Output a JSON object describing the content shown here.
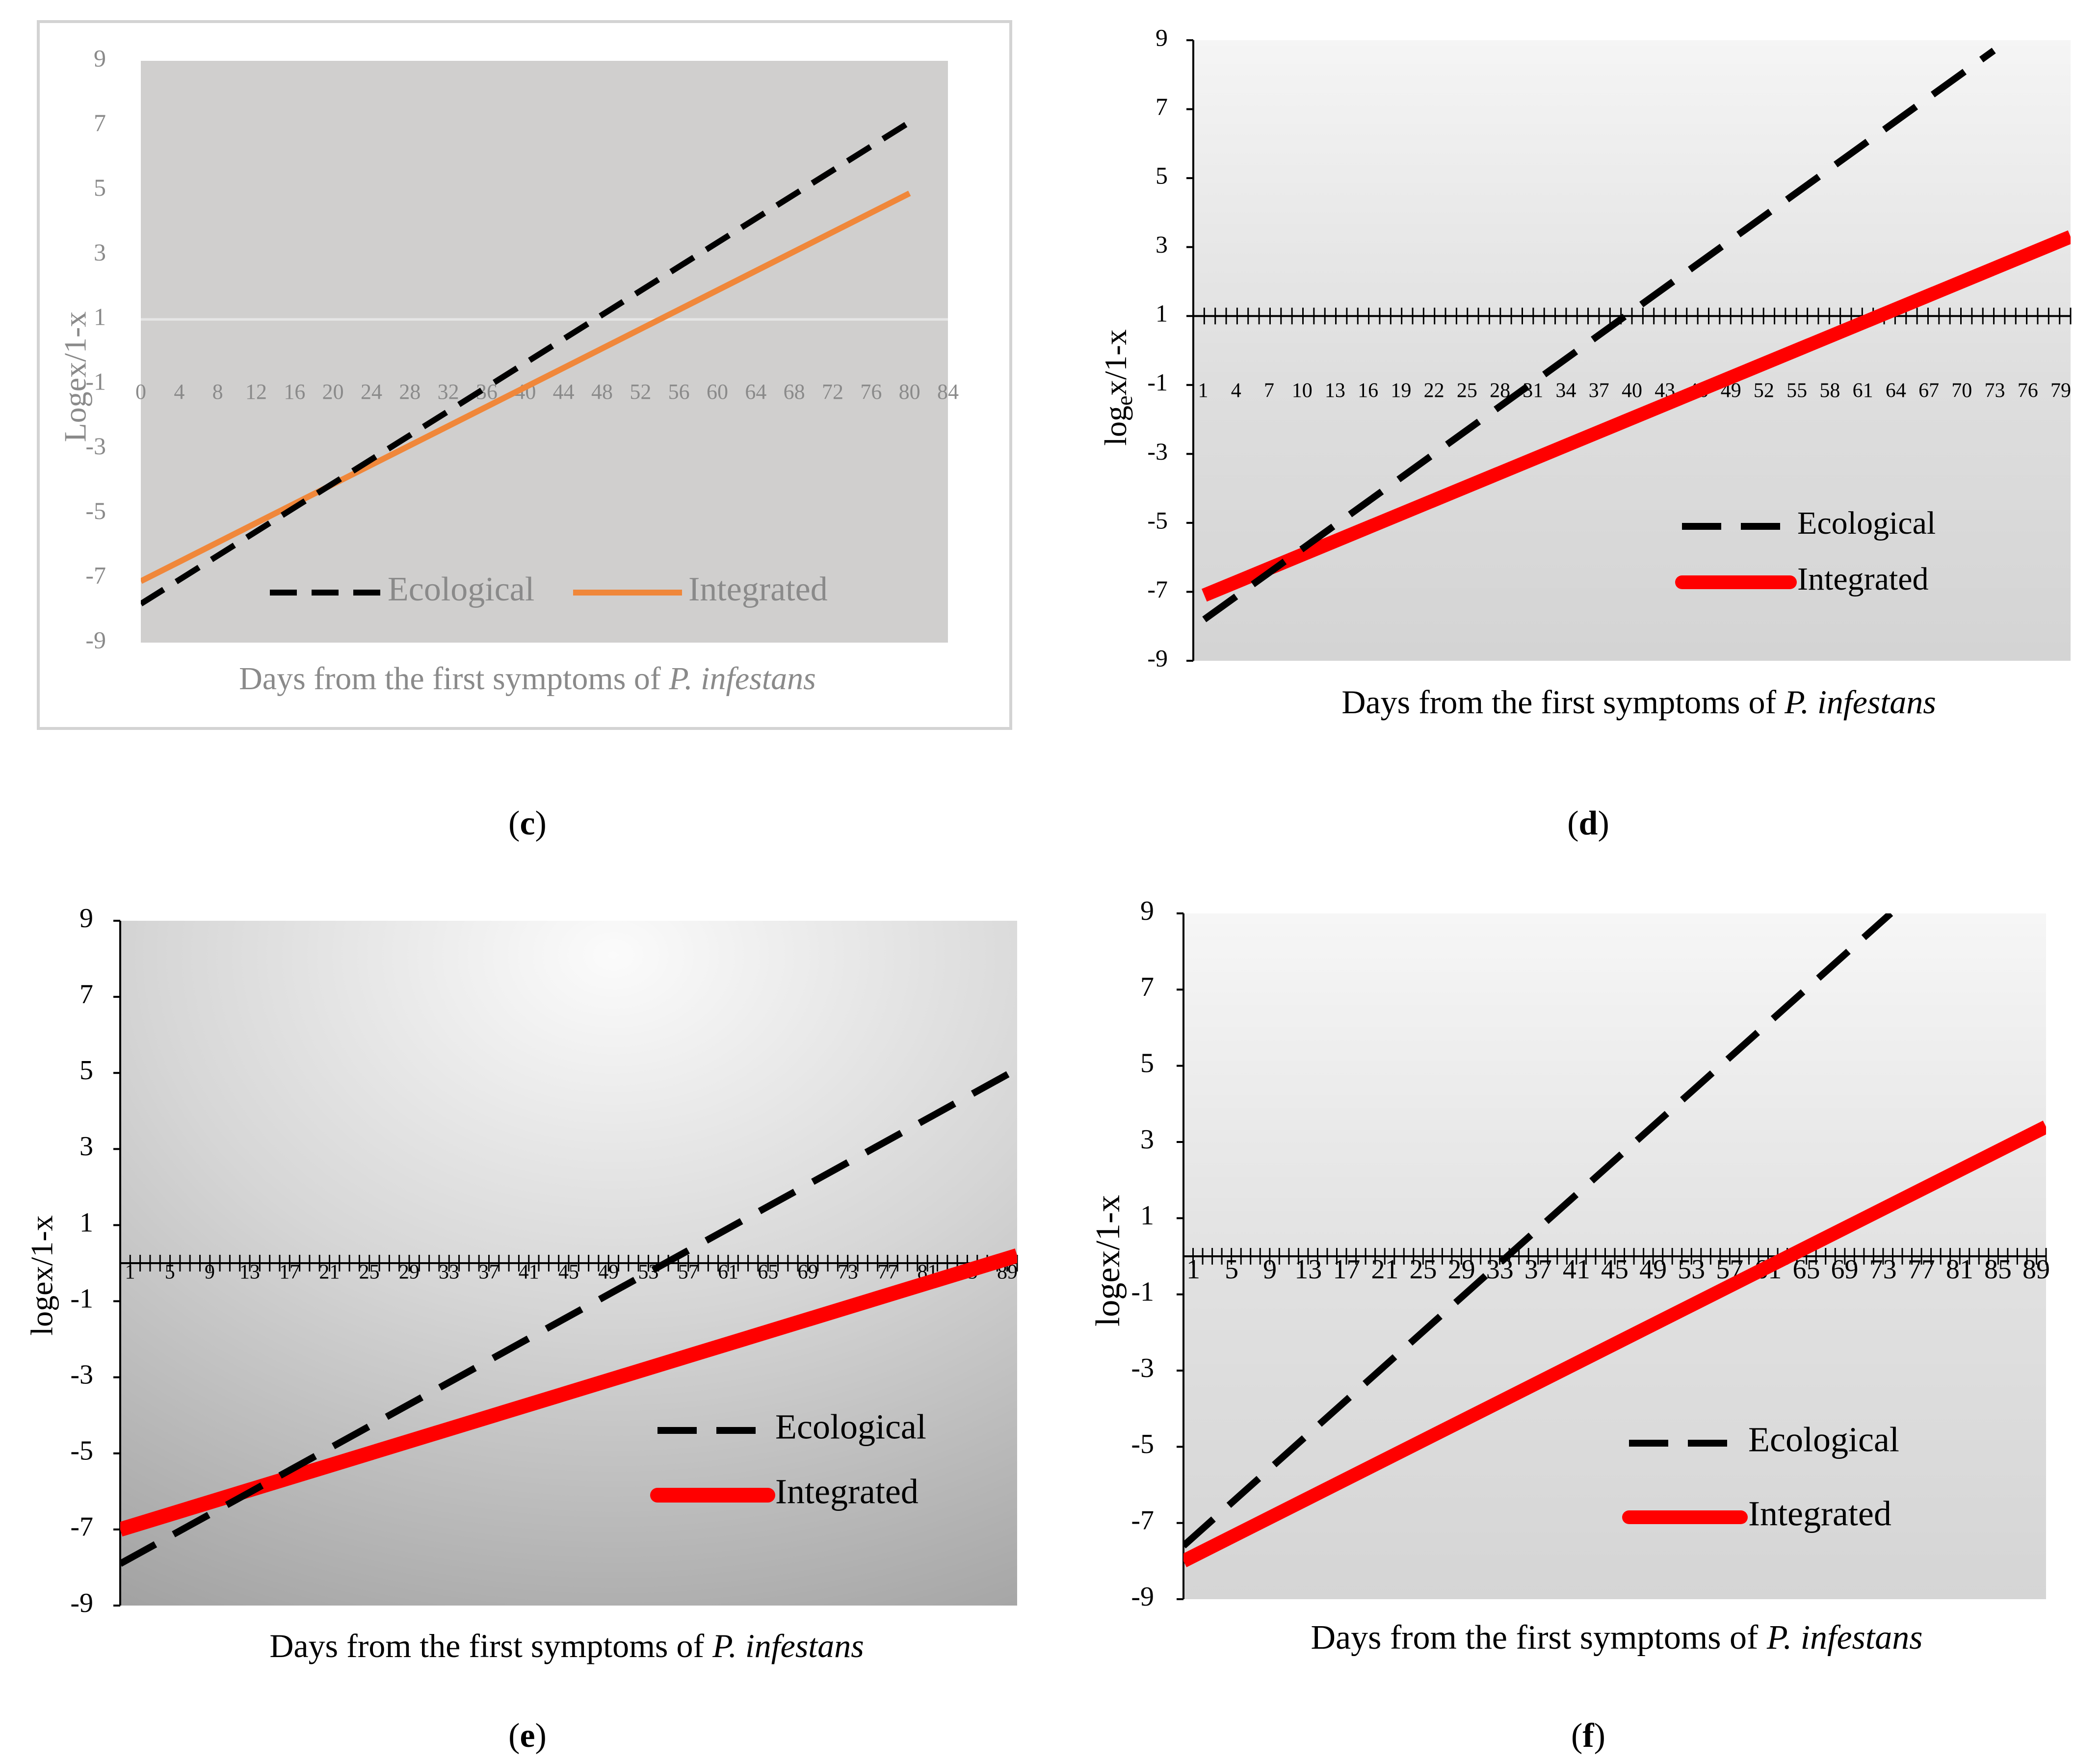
{
  "chart_data": [
    {
      "panel": "(c)",
      "panel_letter": "c",
      "type": "line",
      "xlabel_main": "Days from the first symptoms of ",
      "xlabel_italic": "P. infestans",
      "ylabel": "Logex/1-x",
      "xlim": [
        0,
        84
      ],
      "ylim": [
        -9,
        9
      ],
      "yticks": [
        9,
        7,
        5,
        3,
        1,
        -1,
        -3,
        -5,
        -7,
        -9
      ],
      "xtick_labels": [
        "0",
        "4",
        "8",
        "12",
        "16",
        "20",
        "24",
        "28",
        "32",
        "36",
        "40",
        "44",
        "48",
        "52",
        "56",
        "60",
        "64",
        "68",
        "72",
        "76",
        "80",
        "84"
      ],
      "series": [
        {
          "name": "Ecological",
          "x": [
            0,
            80
          ],
          "y": [
            -7.8,
            7.1
          ]
        },
        {
          "name": "Integrated",
          "x": [
            0,
            80
          ],
          "y": [
            -7.1,
            4.9
          ]
        }
      ]
    },
    {
      "panel": "(d)",
      "panel_letter": "d",
      "type": "line",
      "xlabel_main": "Days from the first symptoms of ",
      "xlabel_italic": "P. infestans",
      "ylabel": "loge x/1-x",
      "ylabel_base": "log",
      "ylabel_sub": "e",
      "ylabel_rest": "x/1-x",
      "xlim": [
        0,
        80
      ],
      "ylim": [
        -9,
        9
      ],
      "yticks": [
        9,
        7,
        5,
        3,
        1,
        -1,
        -3,
        -5,
        -7,
        -9
      ],
      "xtick_labels": [
        "1",
        "4",
        "7",
        "10",
        "13",
        "16",
        "19",
        "22",
        "25",
        "28",
        "31",
        "34",
        "37",
        "40",
        "43",
        "46",
        "49",
        "52",
        "55",
        "58",
        "61",
        "64",
        "67",
        "70",
        "73",
        "76",
        "79"
      ],
      "series": [
        {
          "name": "Ecological",
          "x": [
            1,
            73
          ],
          "y": [
            -7.8,
            8.7
          ]
        },
        {
          "name": "Integrated",
          "x": [
            1,
            80
          ],
          "y": [
            -7.1,
            3.3
          ]
        }
      ]
    },
    {
      "panel": "(e)",
      "panel_letter": "e",
      "type": "line",
      "xlabel_main": "Days from the first symptoms of ",
      "xlabel_italic": "P. infestans",
      "ylabel": "logex/1-x",
      "xlim": [
        0,
        90
      ],
      "ylim": [
        -9,
        9
      ],
      "yticks": [
        9,
        7,
        5,
        3,
        1,
        -1,
        -3,
        -5,
        -7,
        -9
      ],
      "xtick_labels": [
        "1",
        "5",
        "9",
        "13",
        "17",
        "21",
        "25",
        "29",
        "33",
        "37",
        "41",
        "45",
        "49",
        "53",
        "57",
        "61",
        "65",
        "69",
        "73",
        "77",
        "81",
        "85",
        "89"
      ],
      "series": [
        {
          "name": "Ecological",
          "x": [
            0,
            90
          ],
          "y": [
            -7.9,
            5.1
          ]
        },
        {
          "name": "Integrated",
          "x": [
            0,
            90
          ],
          "y": [
            -7.0,
            0.2
          ]
        }
      ]
    },
    {
      "panel": "(f)",
      "panel_letter": "f",
      "type": "line",
      "xlabel_main": "Days from the first symptoms of ",
      "xlabel_italic": "P. infestans",
      "ylabel": "logex/1-x",
      "xlim": [
        0,
        90
      ],
      "ylim": [
        -9,
        9
      ],
      "yticks": [
        9,
        7,
        5,
        3,
        1,
        -1,
        -3,
        -5,
        -7,
        -9
      ],
      "xtick_labels": [
        "1",
        "5",
        "9",
        "13",
        "17",
        "21",
        "25",
        "29",
        "33",
        "37",
        "41",
        "45",
        "49",
        "53",
        "57",
        "61",
        "65",
        "69",
        "73",
        "77",
        "81",
        "85",
        "89"
      ],
      "series": [
        {
          "name": "Ecological",
          "x": [
            0,
            73.8
          ],
          "y": [
            -7.6,
            9.0
          ]
        },
        {
          "name": "Integrated",
          "x": [
            0,
            90
          ],
          "y": [
            -8.0,
            3.4
          ]
        }
      ]
    }
  ],
  "legend": {
    "ecological": "Ecological",
    "integrated": "Integrated"
  },
  "colors": {
    "ecological": "#000000",
    "integrated_c": "#f0873a",
    "integrated_red": "#ff0000",
    "text_gray": "#8a8a8a"
  }
}
